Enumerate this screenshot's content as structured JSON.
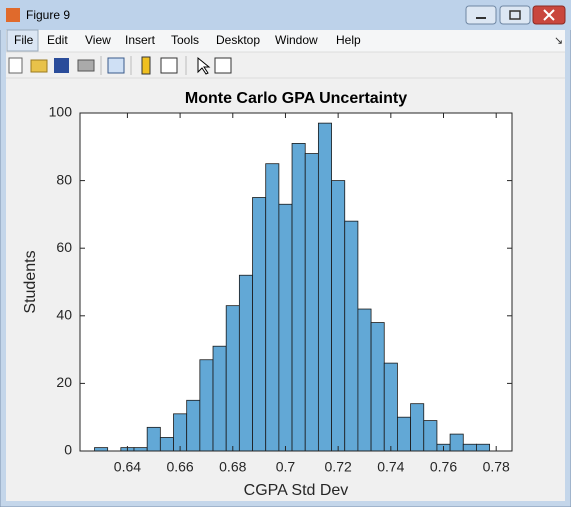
{
  "window": {
    "title": "Figure 9",
    "menu": [
      "File",
      "Edit",
      "View",
      "Insert",
      "Tools",
      "Desktop",
      "Window",
      "Help"
    ]
  },
  "chart_data": {
    "type": "histogram",
    "title": "Monte Carlo GPA Uncertainty",
    "x_label": "CGPA Std Dev",
    "y_label": "Students",
    "color": "#62a8d6",
    "bins": [
      0.6275,
      0.6325,
      0.6375,
      0.6425,
      0.6475,
      0.6525,
      0.6575,
      0.6625,
      0.6675,
      0.6725,
      0.6775,
      0.6825,
      0.6875,
      0.6925,
      0.6975,
      0.7025,
      0.7075,
      0.7125,
      0.7175,
      0.7225,
      0.7275,
      0.7325,
      0.7375,
      0.7425,
      0.7475,
      0.7525,
      0.7575,
      0.7625,
      0.7675,
      0.7725,
      0.7775
    ],
    "values": [
      1,
      0,
      1,
      1,
      7,
      4,
      11,
      15,
      27,
      31,
      43,
      52,
      75,
      85,
      73,
      91,
      88,
      97,
      80,
      68,
      42,
      38,
      26,
      10,
      14,
      9,
      2,
      5,
      2,
      2
    ],
    "xlim": [
      0.622,
      0.786
    ],
    "xticks": [
      0.64,
      0.66,
      0.68,
      0.7,
      0.72,
      0.74,
      0.76,
      0.78
    ],
    "ylim": [
      0,
      100
    ],
    "yticks": [
      0,
      20,
      40,
      60,
      80,
      100
    ]
  }
}
